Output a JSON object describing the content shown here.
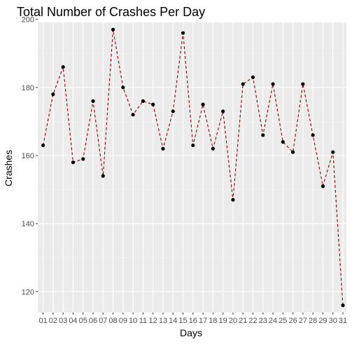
{
  "chart_data": {
    "type": "line",
    "title": "Total Number of Crashes Per Day",
    "xlabel": "Days",
    "ylabel": "Crashes",
    "categories": [
      "01",
      "02",
      "03",
      "04",
      "05",
      "06",
      "07",
      "08",
      "09",
      "10",
      "11",
      "12",
      "13",
      "14",
      "15",
      "16",
      "17",
      "18",
      "19",
      "20",
      "21",
      "22",
      "23",
      "24",
      "25",
      "26",
      "27",
      "28",
      "29",
      "30",
      "31"
    ],
    "values": [
      163,
      178,
      186,
      158,
      159,
      176,
      154,
      197,
      180,
      172,
      176,
      175,
      162,
      173,
      196,
      163,
      175,
      162,
      173,
      147,
      181,
      183,
      166,
      181,
      164,
      161,
      181,
      166,
      151,
      161,
      116
    ],
    "y_ticks": [
      120,
      140,
      160,
      180,
      200
    ],
    "ylim": [
      113.9,
      199.1
    ],
    "grid": true,
    "line_style": "dashed",
    "colors": {
      "line": "#8b0000",
      "point": "#000000",
      "panel_background": "#ebebeb",
      "grid": "#ffffff"
    }
  }
}
